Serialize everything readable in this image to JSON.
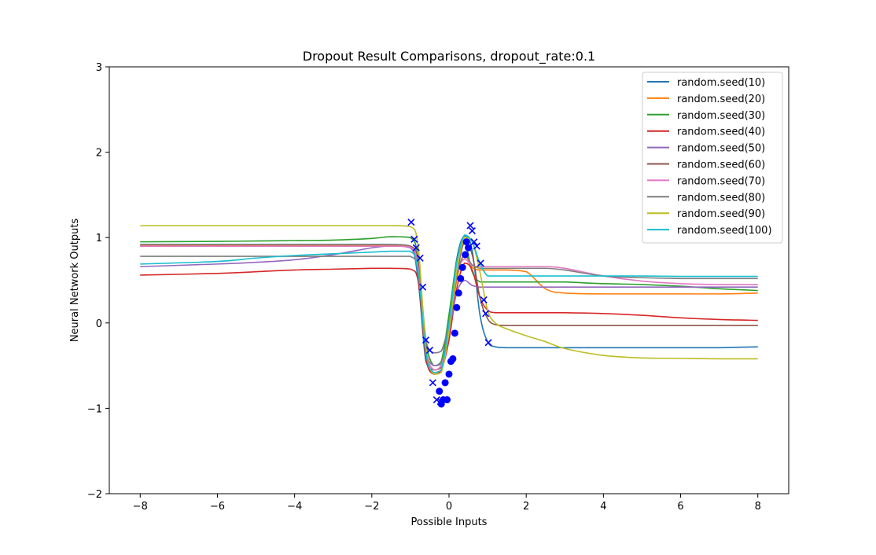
{
  "chart_data": {
    "type": "line",
    "title": "Dropout Result Comparisons, dropout_rate:0.1",
    "xlabel": "Possible Inputs",
    "ylabel": "Neural Network Outputs",
    "xlim": [
      -8.8,
      8.8
    ],
    "ylim": [
      -2,
      3
    ],
    "xticks": [
      -8,
      -6,
      -4,
      -2,
      0,
      2,
      4,
      6,
      8
    ],
    "xtick_labels": [
      "−8",
      "−6",
      "−4",
      "−2",
      "0",
      "2",
      "4",
      "6",
      "8"
    ],
    "yticks": [
      -2,
      -1,
      0,
      1,
      2,
      3
    ],
    "ytick_labels": [
      "−2",
      "−1",
      "0",
      "1",
      "2",
      "3"
    ],
    "grid": false,
    "legend_position": "top-right",
    "x": [
      -8,
      -6,
      -5,
      -4,
      -3,
      -2,
      -1.5,
      -1,
      -0.8,
      -0.6,
      -0.4,
      -0.2,
      0,
      0.2,
      0.4,
      0.6,
      0.8,
      1.0,
      1.2,
      1.5,
      2,
      2.5,
      3,
      4,
      5,
      6,
      7,
      8
    ],
    "series": [
      {
        "name": "random.seed(10)",
        "color": "#1f77b4",
        "values": [
          0.92,
          0.92,
          0.92,
          0.92,
          0.92,
          0.92,
          0.92,
          0.9,
          0.5,
          -0.45,
          -0.55,
          -0.5,
          0.05,
          0.75,
          1.02,
          0.85,
          0.1,
          -0.22,
          -0.28,
          -0.29,
          -0.29,
          -0.29,
          -0.29,
          -0.29,
          -0.29,
          -0.29,
          -0.29,
          -0.28
        ]
      },
      {
        "name": "random.seed(20)",
        "color": "#ff7f0e",
        "values": [
          0.91,
          0.91,
          0.91,
          0.91,
          0.91,
          0.91,
          0.91,
          0.9,
          0.6,
          -0.4,
          -0.58,
          -0.55,
          -0.1,
          0.5,
          0.8,
          0.65,
          0.62,
          0.62,
          0.62,
          0.62,
          0.6,
          0.4,
          0.35,
          0.34,
          0.34,
          0.34,
          0.34,
          0.35
        ]
      },
      {
        "name": "random.seed(30)",
        "color": "#2ca02c",
        "values": [
          0.95,
          0.955,
          0.96,
          0.965,
          0.97,
          0.99,
          1.01,
          1.0,
          0.75,
          -0.2,
          -0.5,
          -0.45,
          0.1,
          0.72,
          0.95,
          0.6,
          0.48,
          0.48,
          0.48,
          0.48,
          0.48,
          0.48,
          0.48,
          0.46,
          0.45,
          0.43,
          0.4,
          0.38
        ]
      },
      {
        "name": "random.seed(40)",
        "color": "#d62728",
        "values": [
          0.56,
          0.58,
          0.6,
          0.62,
          0.63,
          0.64,
          0.64,
          0.63,
          0.5,
          -0.4,
          -0.6,
          -0.55,
          -0.2,
          0.4,
          0.7,
          0.62,
          0.3,
          0.15,
          0.12,
          0.12,
          0.12,
          0.12,
          0.12,
          0.11,
          0.09,
          0.06,
          0.04,
          0.03
        ]
      },
      {
        "name": "random.seed(50)",
        "color": "#9467bd",
        "values": [
          0.66,
          0.69,
          0.71,
          0.74,
          0.8,
          0.88,
          0.9,
          0.88,
          0.6,
          -0.3,
          -0.5,
          -0.48,
          -0.1,
          0.35,
          0.5,
          0.44,
          0.42,
          0.42,
          0.42,
          0.42,
          0.42,
          0.42,
          0.42,
          0.42,
          0.42,
          0.42,
          0.42,
          0.42
        ]
      },
      {
        "name": "random.seed(60)",
        "color": "#8c564b",
        "values": [
          0.9,
          0.9,
          0.9,
          0.9,
          0.9,
          0.9,
          0.9,
          0.9,
          0.7,
          -0.3,
          -0.55,
          -0.52,
          -0.1,
          0.55,
          0.95,
          0.8,
          0.3,
          0.05,
          -0.02,
          -0.03,
          -0.03,
          -0.03,
          -0.03,
          -0.03,
          -0.03,
          -0.03,
          -0.03,
          -0.03
        ]
      },
      {
        "name": "random.seed(70)",
        "color": "#e377c2",
        "values": [
          0.9,
          0.9,
          0.9,
          0.9,
          0.9,
          0.9,
          0.9,
          0.89,
          0.65,
          -0.3,
          -0.55,
          -0.5,
          -0.05,
          0.55,
          0.75,
          0.67,
          0.66,
          0.66,
          0.66,
          0.66,
          0.66,
          0.66,
          0.64,
          0.55,
          0.49,
          0.46,
          0.45,
          0.45
        ]
      },
      {
        "name": "random.seed(80)",
        "color": "#7f7f7f",
        "values": [
          0.78,
          0.78,
          0.78,
          0.78,
          0.78,
          0.78,
          0.78,
          0.78,
          0.6,
          -0.2,
          -0.35,
          -0.33,
          0.0,
          0.55,
          0.8,
          0.68,
          0.64,
          0.64,
          0.64,
          0.64,
          0.64,
          0.64,
          0.62,
          0.55,
          0.53,
          0.52,
          0.52,
          0.52
        ]
      },
      {
        "name": "random.seed(90)",
        "color": "#bcbd22",
        "values": [
          1.14,
          1.14,
          1.14,
          1.14,
          1.14,
          1.14,
          1.14,
          1.13,
          0.9,
          -0.3,
          -0.6,
          -0.58,
          -0.1,
          0.6,
          1.0,
          0.95,
          0.6,
          0.15,
          0.0,
          -0.07,
          -0.15,
          -0.22,
          -0.3,
          -0.38,
          -0.41,
          -0.415,
          -0.42,
          -0.42
        ]
      },
      {
        "name": "random.seed(100)",
        "color": "#17becf",
        "values": [
          0.69,
          0.72,
          0.76,
          0.79,
          0.81,
          0.83,
          0.84,
          0.84,
          0.6,
          -0.35,
          -0.58,
          -0.55,
          0.0,
          0.7,
          1.03,
          0.95,
          0.7,
          0.55,
          0.55,
          0.55,
          0.55,
          0.55,
          0.55,
          0.55,
          0.55,
          0.545,
          0.545,
          0.545
        ]
      }
    ],
    "markers_x": [
      {
        "x": -0.98,
        "y": 1.18
      },
      {
        "x": -0.9,
        "y": 0.98
      },
      {
        "x": -0.85,
        "y": 0.88
      },
      {
        "x": -0.75,
        "y": 0.76
      },
      {
        "x": -0.68,
        "y": 0.42
      },
      {
        "x": -0.6,
        "y": -0.2
      },
      {
        "x": -0.5,
        "y": -0.32
      },
      {
        "x": -0.42,
        "y": -0.7
      },
      {
        "x": -0.32,
        "y": -0.9
      },
      {
        "x": -0.22,
        "y": -0.92
      },
      {
        "x": 0.55,
        "y": 1.14
      },
      {
        "x": 0.6,
        "y": 1.08
      },
      {
        "x": 0.65,
        "y": 0.95
      },
      {
        "x": 0.72,
        "y": 0.9
      },
      {
        "x": 0.82,
        "y": 0.7
      },
      {
        "x": 0.9,
        "y": 0.27
      },
      {
        "x": 0.95,
        "y": 0.11
      },
      {
        "x": 1.02,
        "y": -0.23
      }
    ],
    "markers_o": [
      {
        "x": -0.25,
        "y": -0.8
      },
      {
        "x": -0.2,
        "y": -0.95
      },
      {
        "x": -0.15,
        "y": -0.9
      },
      {
        "x": -0.1,
        "y": -0.7
      },
      {
        "x": -0.05,
        "y": -0.9
      },
      {
        "x": 0.0,
        "y": -0.6
      },
      {
        "x": 0.05,
        "y": -0.45
      },
      {
        "x": 0.1,
        "y": -0.42
      },
      {
        "x": 0.15,
        "y": -0.12
      },
      {
        "x": 0.2,
        "y": 0.18
      },
      {
        "x": 0.25,
        "y": 0.35
      },
      {
        "x": 0.3,
        "y": 0.52
      },
      {
        "x": 0.35,
        "y": 0.65
      },
      {
        "x": 0.42,
        "y": 0.8
      },
      {
        "x": 0.45,
        "y": 0.95
      },
      {
        "x": 0.5,
        "y": 0.88
      }
    ],
    "marker_color": "#0000ff"
  }
}
